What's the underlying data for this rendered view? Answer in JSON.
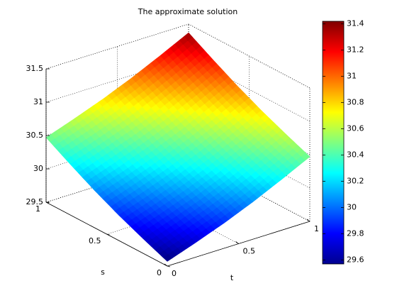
{
  "chart_data": {
    "type": "surface",
    "title": "The approximate solution",
    "xlabel": "t",
    "ylabel": "s",
    "s": [
      0,
      0.2,
      0.4,
      0.6,
      0.8,
      1
    ],
    "t": [
      0,
      0.2,
      0.4,
      0.6,
      0.8,
      1
    ],
    "z": [
      [
        29.57,
        29.72,
        29.88,
        30.06,
        30.26,
        30.47
      ],
      [
        29.72,
        29.87,
        30.03,
        30.21,
        30.41,
        30.62
      ],
      [
        29.88,
        30.03,
        30.19,
        30.37,
        30.57,
        30.78
      ],
      [
        30.06,
        30.21,
        30.37,
        30.55,
        30.75,
        30.96
      ],
      [
        30.26,
        30.41,
        30.57,
        30.75,
        30.95,
        31.16
      ],
      [
        30.47,
        30.62,
        30.78,
        30.96,
        31.16,
        31.37
      ]
    ],
    "slim": [
      0,
      1
    ],
    "tlim": [
      0,
      1
    ],
    "zlim": [
      29.5,
      31.5
    ],
    "sticks": [
      0,
      0.5,
      1
    ],
    "tticks": [
      0,
      0.5,
      1
    ],
    "zticks": [
      29.5,
      30,
      30.5,
      31,
      31.5
    ],
    "clim": [
      29.57,
      31.42
    ],
    "cticks": [
      29.6,
      29.8,
      30,
      30.2,
      30.4,
      30.6,
      30.8,
      31,
      31.2,
      31.4
    ],
    "colormap": "jet",
    "grid": true
  }
}
